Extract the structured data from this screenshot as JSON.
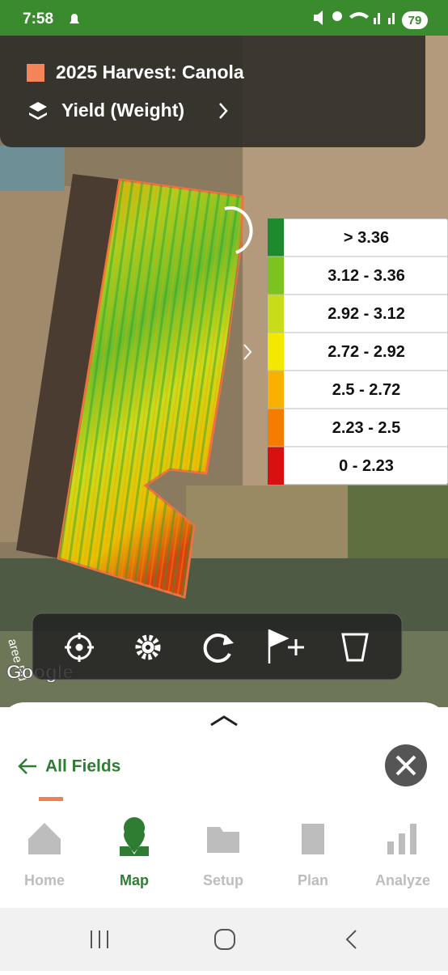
{
  "status_bar": {
    "time": "7:58",
    "battery": "79"
  },
  "header": {
    "title": "2025 Harvest: Canola",
    "layer": "Yield (Weight)"
  },
  "legend": [
    {
      "label": "> 3.36",
      "color": "#1e8a2e"
    },
    {
      "label": "3.12 - 3.36",
      "color": "#7cc31f"
    },
    {
      "label": "2.92 - 3.12",
      "color": "#c8dc1a"
    },
    {
      "label": "2.72 - 2.92",
      "color": "#f5e800"
    },
    {
      "label": "2.5 - 2.72",
      "color": "#f9b000"
    },
    {
      "label": "2.23 - 2.5",
      "color": "#f57c00"
    },
    {
      "label": "0 - 2.23",
      "color": "#d81010"
    }
  ],
  "map": {
    "road_label": "aree Rd",
    "attribution": "Google"
  },
  "sheet": {
    "back_link": "All Fields"
  },
  "nav": [
    "Home",
    "Map",
    "Setup",
    "Plan",
    "Analyze"
  ],
  "nav_active": 1
}
